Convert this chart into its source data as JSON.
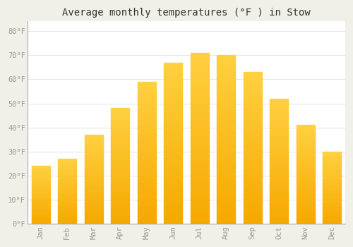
{
  "title": "Average monthly temperatures (°F ) in Stow",
  "months": [
    "Jan",
    "Feb",
    "Mar",
    "Apr",
    "May",
    "Jun",
    "Jul",
    "Aug",
    "Sep",
    "Oct",
    "Nov",
    "Dec"
  ],
  "values": [
    24,
    27,
    37,
    48,
    59,
    67,
    71,
    70,
    63,
    52,
    41,
    30
  ],
  "bar_color_bottom": "#F5A800",
  "bar_color_top": "#FFD040",
  "plot_bg_color": "#FFFFFF",
  "fig_bg_color": "#F0EFE8",
  "grid_color": "#E8E8E8",
  "ylim": [
    0,
    84
  ],
  "yticks": [
    0,
    10,
    20,
    30,
    40,
    50,
    60,
    70,
    80
  ],
  "ytick_labels": [
    "0°F",
    "10°F",
    "20°F",
    "30°F",
    "40°F",
    "50°F",
    "60°F",
    "70°F",
    "80°F"
  ],
  "tick_color": "#999999",
  "title_fontsize": 10,
  "tick_fontsize": 7.5,
  "font_family": "monospace",
  "bar_width": 0.7
}
